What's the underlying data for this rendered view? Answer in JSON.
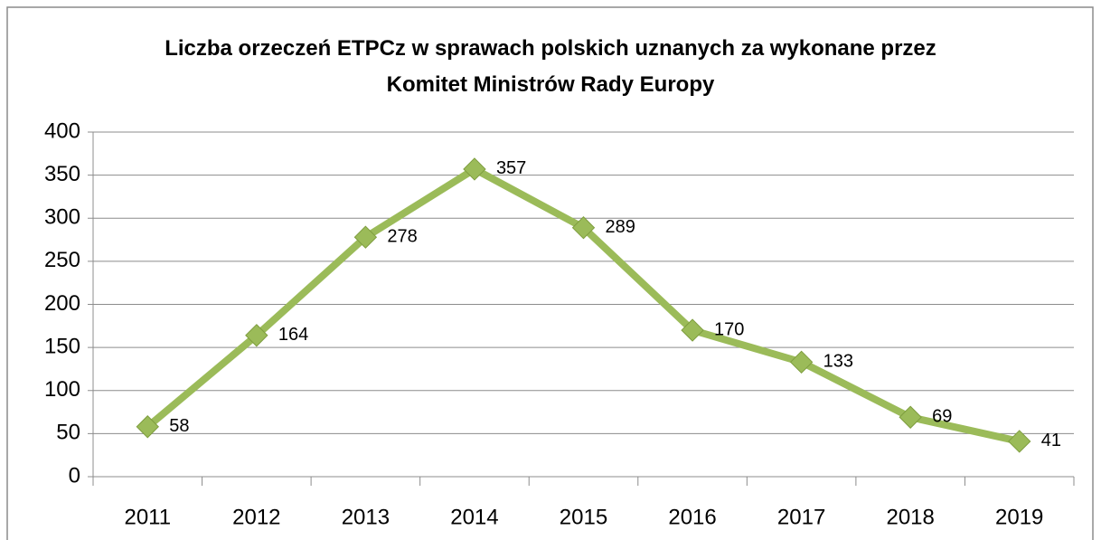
{
  "chart_data": {
    "type": "line",
    "title": "Liczba orzeczeń ETPCz w sprawach polskich uznanych za wykonane przez Komitet Ministrów Rady Europy",
    "categories": [
      "2011",
      "2012",
      "2013",
      "2014",
      "2015",
      "2016",
      "2017",
      "2018",
      "2019"
    ],
    "series": [
      {
        "name": "Liczba orzeczeń",
        "color": "#9bbb59",
        "values": [
          58,
          164,
          278,
          357,
          289,
          170,
          133,
          69,
          41
        ]
      }
    ],
    "ylim": [
      0,
      400
    ],
    "yticks": [
      0,
      50,
      100,
      150,
      200,
      250,
      300,
      350,
      400
    ],
    "grid": true
  }
}
